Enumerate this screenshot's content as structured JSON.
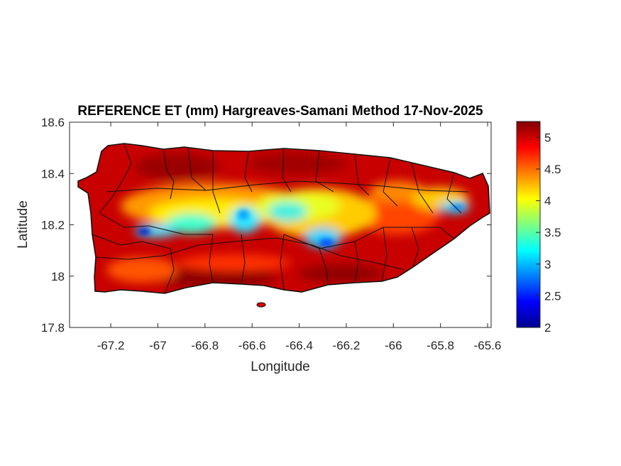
{
  "chart_data": {
    "type": "heatmap",
    "title": "REFERENCE ET (mm) Hargreaves-Samani Method  17-Nov-2025",
    "xlabel": "Longitude",
    "ylabel": "Latitude",
    "xlim": [
      -67.375,
      -65.585
    ],
    "ylim": [
      17.8,
      18.6
    ],
    "xticks": [
      -67.2,
      -67,
      -66.8,
      -66.6,
      -66.4,
      -66.2,
      -66,
      -65.8,
      -65.6
    ],
    "xtick_labels": [
      "-67.2",
      "-67",
      "-66.8",
      "-66.6",
      "-66.4",
      "-66.2",
      "-66",
      "-65.8",
      "-65.6"
    ],
    "yticks": [
      17.8,
      18,
      18.2,
      18.4,
      18.6
    ],
    "ytick_labels": [
      "17.8",
      "18",
      "18.2",
      "18.4",
      "18.6"
    ],
    "colormap": "jet",
    "colorbar": {
      "clim": [
        2,
        5.25
      ],
      "ticks": [
        2,
        2.5,
        3,
        3.5,
        4,
        4.5,
        5
      ],
      "tick_labels": [
        "2",
        "2.5",
        "3",
        "3.5",
        "4",
        "4.5",
        "5"
      ]
    },
    "features": [
      {
        "description": "low ET band along central mountains",
        "value_range": [
          2.2,
          4.0
        ]
      },
      {
        "description": "high ET coastal plains",
        "value_range": [
          4.8,
          5.25
        ]
      }
    ],
    "grid": false
  }
}
